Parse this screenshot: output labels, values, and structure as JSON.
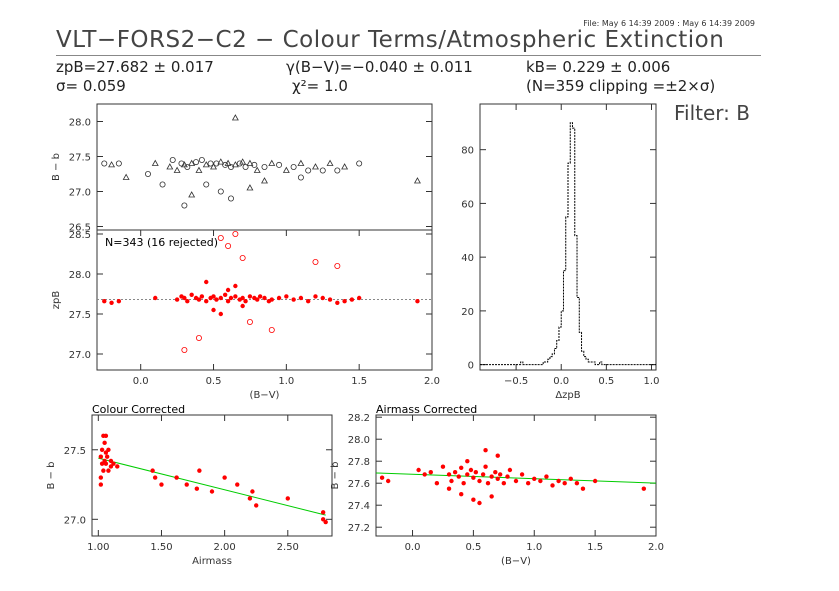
{
  "header": {
    "file_info": "File: May  6 14:39 2009 : May  6 14:39 2009",
    "title": "VLT−FORS2−C2 − Colour Terms/Atmospheric Extinction",
    "zp": "zpB=27.682 ± 0.017",
    "gamma": "γ(B−V)=−0.040 ± 0.011",
    "kcoef": "kB= 0.229 ± 0.006",
    "sigma": "σ= 0.059",
    "chi2": "χ²=   1.0",
    "clip": "(N=359 clipping =±2×σ)",
    "filter": "Filter: B"
  },
  "colors": {
    "raw_points": "#333333",
    "corrected_points": "#ff0000",
    "rejected_points": "#ff0000",
    "fit_line_green": "#00cc00",
    "zp_line": "#888888",
    "histogram": "#000000"
  },
  "chart_data": [
    {
      "id": "raw_vs_color",
      "type": "scatter",
      "xlabel": "",
      "ylabel": "B − b",
      "xlim": [
        -0.3,
        2.0
      ],
      "ylim": [
        26.45,
        28.25
      ],
      "yticks": [
        26.5,
        27.0,
        27.5,
        28.0
      ],
      "ytick_labels": [
        "26.5",
        "27.0",
        "27.5",
        "28.0"
      ],
      "series": [
        {
          "marker": "mixed-circle-triangle",
          "x": [
            -0.25,
            -0.2,
            -0.15,
            -0.1,
            0.05,
            0.1,
            0.15,
            0.2,
            0.22,
            0.25,
            0.28,
            0.3,
            0.32,
            0.35,
            0.38,
            0.4,
            0.42,
            0.45,
            0.48,
            0.5,
            0.52,
            0.55,
            0.58,
            0.6,
            0.62,
            0.65,
            0.68,
            0.7,
            0.72,
            0.75,
            0.78,
            0.8,
            0.85,
            0.9,
            0.95,
            1.0,
            1.05,
            1.1,
            1.15,
            1.2,
            1.25,
            1.3,
            1.35,
            1.4,
            1.5,
            1.9,
            0.3,
            0.65,
            0.62,
            0.35,
            0.55,
            0.75,
            0.45,
            0.85,
            1.1
          ],
          "y": [
            27.4,
            27.38,
            27.4,
            27.2,
            27.25,
            27.4,
            27.1,
            27.35,
            27.45,
            27.3,
            27.4,
            27.38,
            27.35,
            27.4,
            27.42,
            27.3,
            27.45,
            27.38,
            27.4,
            27.35,
            27.4,
            27.42,
            27.38,
            27.4,
            27.35,
            27.38,
            27.4,
            27.42,
            27.35,
            27.4,
            27.38,
            27.3,
            27.35,
            27.4,
            27.38,
            27.3,
            27.35,
            27.4,
            27.3,
            27.35,
            27.3,
            27.4,
            27.3,
            27.35,
            27.4,
            27.15,
            26.8,
            28.05,
            26.9,
            26.95,
            27.0,
            27.05,
            27.1,
            27.15,
            27.2
          ]
        }
      ]
    },
    {
      "id": "zp_vs_color",
      "type": "scatter",
      "annotation": "N=343 (16 rejected)",
      "xlabel": "(B−V)",
      "ylabel": "zpB",
      "xlim": [
        -0.3,
        2.0
      ],
      "ylim": [
        26.8,
        28.55
      ],
      "xticks": [
        0.0,
        0.5,
        1.0,
        1.5,
        2.0
      ],
      "xtick_labels": [
        "0.0",
        "0.5",
        "1.0",
        "1.5",
        "2.0"
      ],
      "yticks": [
        27.0,
        27.5,
        28.0,
        28.5
      ],
      "ytick_labels": [
        "27.0",
        "27.5",
        "28.0",
        "28.5"
      ],
      "hline": 27.682,
      "series": [
        {
          "name": "",
          "marker": "filled",
          "x": [
            -0.25,
            -0.2,
            -0.15,
            0.1,
            0.25,
            0.28,
            0.3,
            0.32,
            0.35,
            0.38,
            0.4,
            0.42,
            0.45,
            0.48,
            0.5,
            0.52,
            0.55,
            0.58,
            0.6,
            0.62,
            0.65,
            0.68,
            0.7,
            0.72,
            0.75,
            0.78,
            0.8,
            0.82,
            0.85,
            0.88,
            0.9,
            0.95,
            1.0,
            1.05,
            1.1,
            1.15,
            1.2,
            1.25,
            1.3,
            1.35,
            1.4,
            1.45,
            1.5,
            1.9,
            0.45,
            0.55,
            0.65,
            0.5,
            0.6,
            0.7
          ],
          "y": [
            27.66,
            27.64,
            27.66,
            27.7,
            27.68,
            27.72,
            27.7,
            27.66,
            27.74,
            27.7,
            27.68,
            27.72,
            27.66,
            27.7,
            27.72,
            27.68,
            27.7,
            27.74,
            27.66,
            27.7,
            27.72,
            27.68,
            27.7,
            27.66,
            27.72,
            27.7,
            27.68,
            27.72,
            27.7,
            27.66,
            27.68,
            27.7,
            27.72,
            27.68,
            27.7,
            27.66,
            27.72,
            27.7,
            27.68,
            27.64,
            27.66,
            27.68,
            27.7,
            27.66,
            27.9,
            27.5,
            27.85,
            27.55,
            27.8,
            27.6
          ]
        },
        {
          "name": "",
          "marker": "open",
          "x": [
            0.3,
            0.55,
            0.6,
            0.65,
            0.7,
            0.75,
            1.2,
            1.35,
            0.9,
            0.4
          ],
          "y": [
            27.05,
            28.45,
            28.35,
            28.5,
            28.2,
            27.4,
            28.15,
            28.1,
            27.3,
            27.2
          ]
        }
      ]
    },
    {
      "id": "histogram",
      "type": "bar",
      "xlabel": "ΔzpB",
      "ylabel": "",
      "xlim": [
        -0.9,
        1.05
      ],
      "ylim": [
        -2,
        97
      ],
      "xticks": [
        -0.5,
        0.0,
        0.5,
        1.0
      ],
      "xtick_labels": [
        "−0.5",
        "0.0",
        "0.5",
        "1.0"
      ],
      "yticks": [
        0,
        20,
        40,
        60,
        80
      ],
      "ytick_labels": [
        "0",
        "20",
        "40",
        "60",
        "80"
      ],
      "bin_width": 0.025,
      "bin_start": -0.9,
      "values": [
        0,
        0,
        0,
        0,
        0,
        0,
        0,
        0,
        0,
        0,
        0,
        0,
        0,
        0,
        0,
        0,
        0,
        0,
        1,
        0,
        0,
        0,
        0,
        0,
        0,
        0,
        0,
        0,
        1,
        1,
        2,
        3,
        4,
        6,
        9,
        14,
        20,
        35,
        55,
        75,
        90,
        88,
        48,
        25,
        12,
        5,
        3,
        2,
        1,
        1,
        1,
        0,
        0,
        1,
        0,
        0,
        0,
        0,
        0,
        0,
        0,
        0,
        0,
        0,
        0,
        0,
        0,
        0,
        0,
        0,
        0,
        0,
        0,
        0,
        0,
        0,
        0,
        0
      ]
    },
    {
      "id": "colour_corrected",
      "type": "scatter",
      "title": "Colour Corrected",
      "xlabel": "Airmass",
      "ylabel": "B − b",
      "xlim": [
        0.95,
        2.85
      ],
      "ylim": [
        26.88,
        27.75
      ],
      "xticks": [
        1.0,
        1.5,
        2.0,
        2.5
      ],
      "xtick_labels": [
        "1.00",
        "1.50",
        "2.00",
        "2.50"
      ],
      "yticks": [
        27.0,
        27.5
      ],
      "ytick_labels": [
        "27.0",
        "27.5"
      ],
      "fit": {
        "x": [
          1.0,
          2.8
        ],
        "y": [
          27.44,
          27.03
        ]
      },
      "series": [
        {
          "name": "",
          "x": [
            1.02,
            1.02,
            1.03,
            1.03,
            1.04,
            1.05,
            1.05,
            1.06,
            1.06,
            1.07,
            1.08,
            1.08,
            1.1,
            1.1,
            1.12,
            1.15,
            1.43,
            1.45,
            1.5,
            1.62,
            1.7,
            1.78,
            1.8,
            1.9,
            2.0,
            2.1,
            2.2,
            2.22,
            2.25,
            2.5,
            2.78,
            2.8,
            2.78,
            1.02,
            1.04,
            1.06
          ],
          "y": [
            27.45,
            27.3,
            27.5,
            27.4,
            27.35,
            27.55,
            27.42,
            27.6,
            27.4,
            27.45,
            27.5,
            27.35,
            27.42,
            27.38,
            27.4,
            27.38,
            27.35,
            27.3,
            27.25,
            27.3,
            27.25,
            27.22,
            27.35,
            27.2,
            27.3,
            27.25,
            27.15,
            27.2,
            27.1,
            27.15,
            27.0,
            26.98,
            27.05,
            27.25,
            27.6,
            27.48
          ]
        }
      ]
    },
    {
      "id": "airmass_corrected",
      "type": "scatter",
      "title": "Airmass Corrected",
      "xlabel": "(B−V)",
      "ylabel": "B − b",
      "xlim": [
        -0.3,
        2.0
      ],
      "ylim": [
        27.12,
        28.22
      ],
      "xticks": [
        0.0,
        0.5,
        1.0,
        1.5,
        2.0
      ],
      "xtick_labels": [
        "0.0",
        "0.5",
        "1.0",
        "1.5",
        "2.0"
      ],
      "yticks": [
        27.2,
        27.4,
        27.6,
        27.8,
        28.0,
        28.2
      ],
      "ytick_labels": [
        "27.2",
        "27.4",
        "27.6",
        "27.8",
        "28.0",
        "28.2"
      ],
      "fit": {
        "x": [
          -0.3,
          2.0
        ],
        "y": [
          27.693,
          27.601
        ]
      },
      "series": [
        {
          "name": "",
          "x": [
            -0.25,
            -0.2,
            0.05,
            0.1,
            0.15,
            0.2,
            0.25,
            0.3,
            0.32,
            0.35,
            0.38,
            0.4,
            0.42,
            0.45,
            0.48,
            0.5,
            0.52,
            0.55,
            0.58,
            0.6,
            0.62,
            0.65,
            0.68,
            0.7,
            0.72,
            0.75,
            0.78,
            0.8,
            0.85,
            0.9,
            0.95,
            1.0,
            1.05,
            1.1,
            1.15,
            1.2,
            1.25,
            1.3,
            1.35,
            1.4,
            1.5,
            1.9,
            0.4,
            0.5,
            0.6,
            0.7,
            0.45,
            0.55,
            0.65,
            0.3
          ],
          "y": [
            27.65,
            27.62,
            27.72,
            27.68,
            27.7,
            27.6,
            27.75,
            27.68,
            27.62,
            27.7,
            27.66,
            27.74,
            27.6,
            27.68,
            27.72,
            27.65,
            27.7,
            27.62,
            27.68,
            27.75,
            27.6,
            27.66,
            27.7,
            27.64,
            27.68,
            27.6,
            27.66,
            27.72,
            27.62,
            27.68,
            27.6,
            27.64,
            27.62,
            27.66,
            27.58,
            27.62,
            27.6,
            27.64,
            27.6,
            27.55,
            27.62,
            27.55,
            27.5,
            27.45,
            27.9,
            27.85,
            27.8,
            27.42,
            27.48,
            27.55
          ]
        }
      ]
    }
  ]
}
